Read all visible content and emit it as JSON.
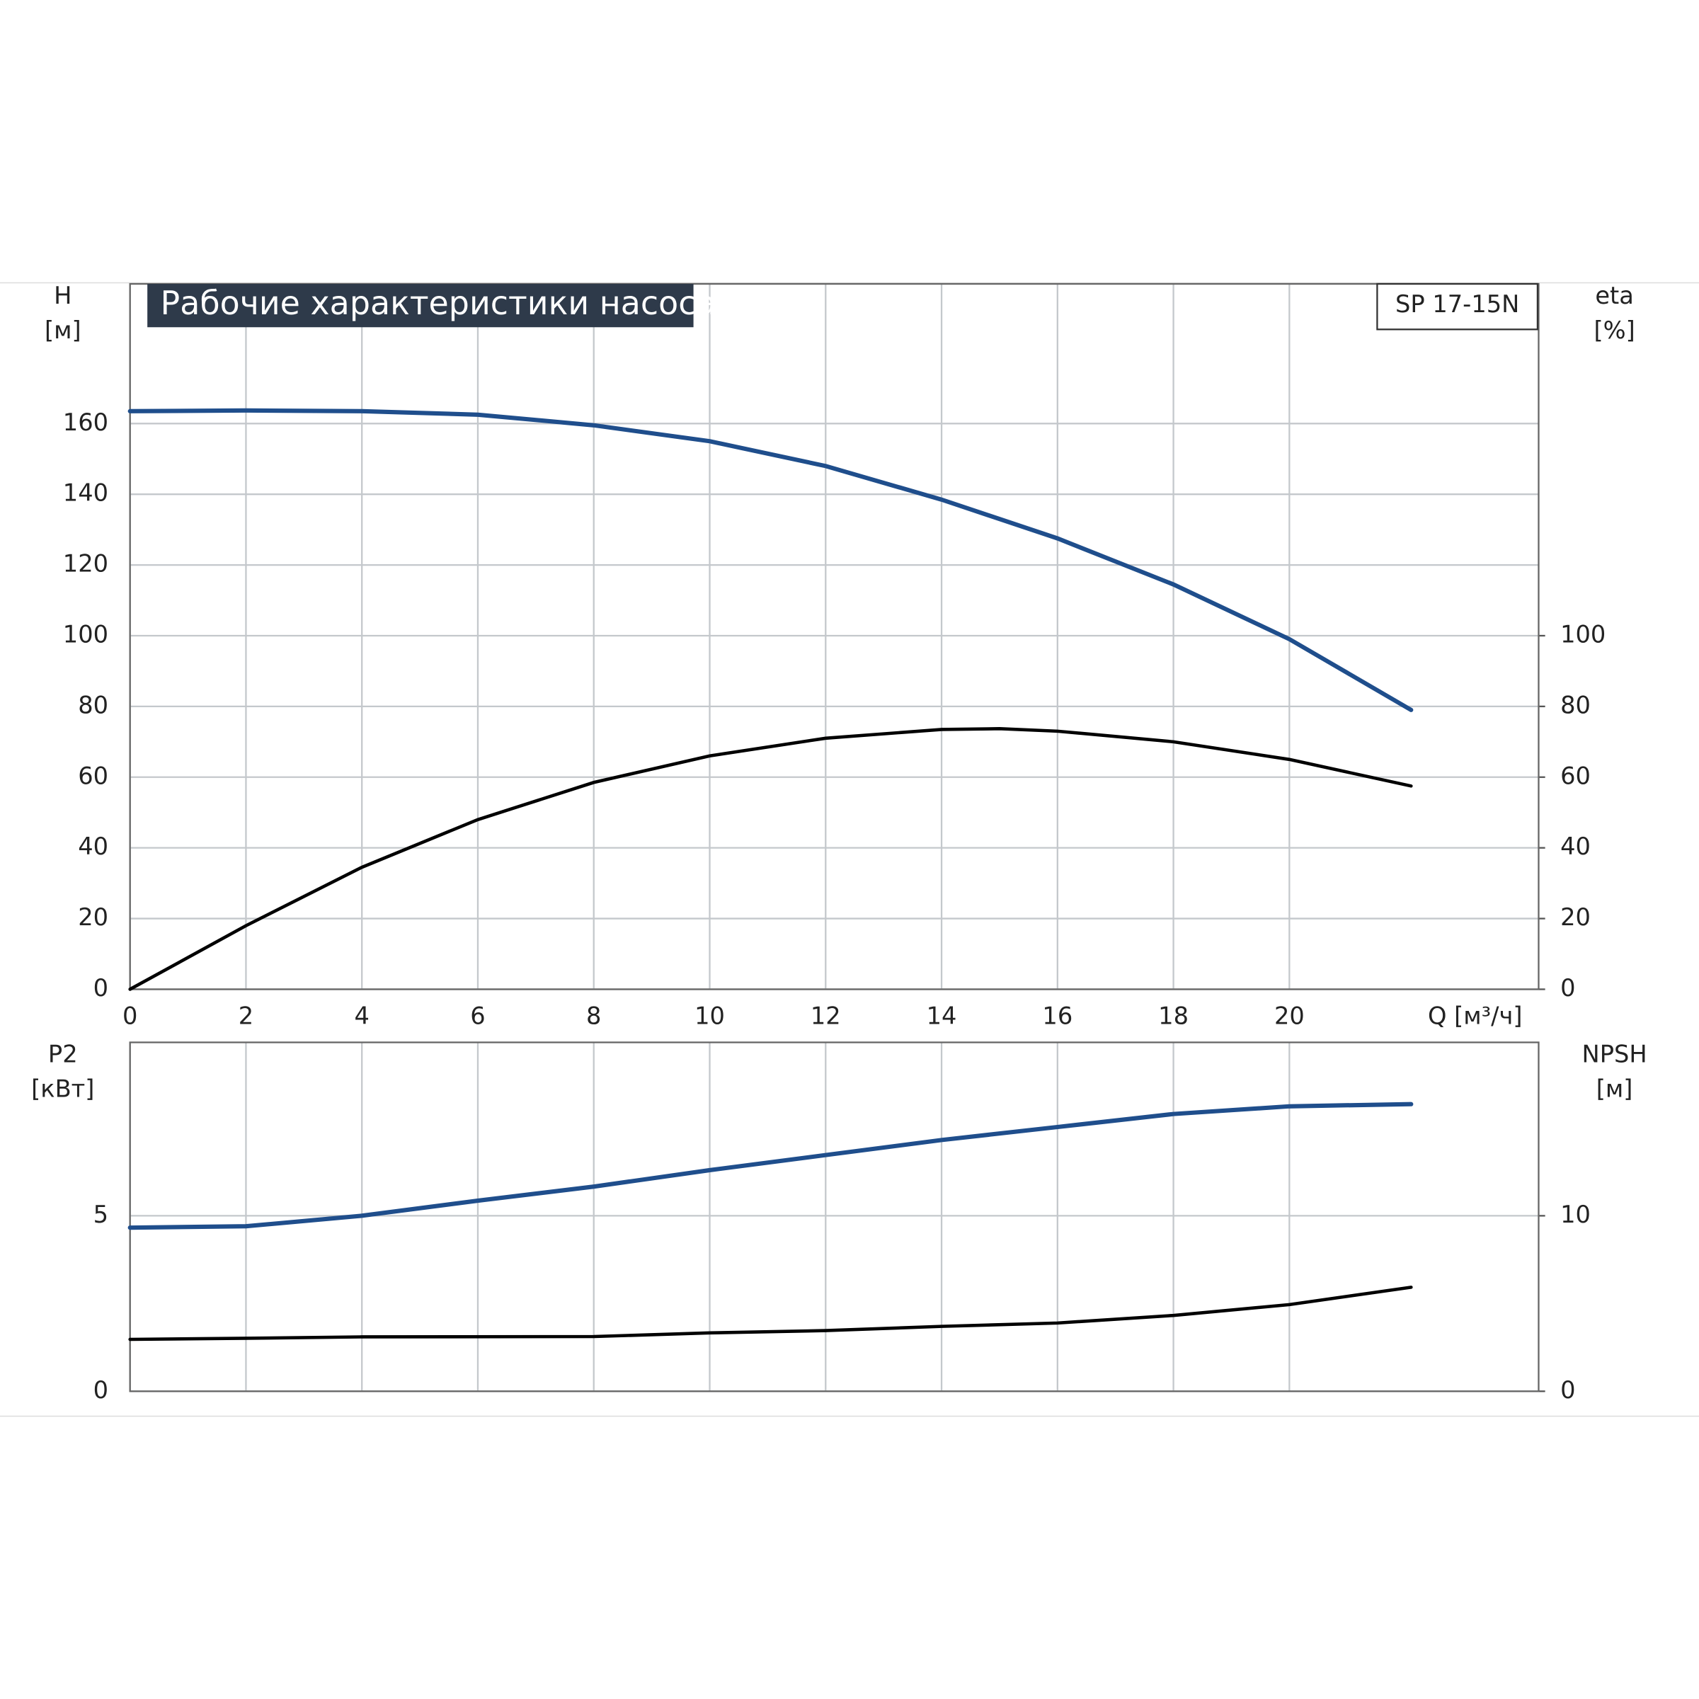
{
  "chart_data": [
    {
      "type": "line",
      "title": "Рабочие характеристики насоса",
      "model": "SP 17-15N",
      "y_label": [
        "H",
        "[м]"
      ],
      "y2_label": [
        "eta",
        "[%]"
      ],
      "x_label": "Q [м³/ч]",
      "xlim": [
        0,
        24.3
      ],
      "xticks": [
        0,
        2,
        4,
        6,
        8,
        10,
        12,
        14,
        16,
        18,
        20
      ],
      "ylim": [
        0,
        199.5
      ],
      "yticks": [
        0,
        20,
        40,
        60,
        80,
        100,
        120,
        140,
        160
      ],
      "y2lim": [
        0,
        199.5
      ],
      "y2ticks": [
        0,
        20,
        40,
        60,
        80,
        100
      ],
      "grid": true,
      "series": [
        {
          "name": "H",
          "color": "#1f4e8c",
          "x": [
            0,
            2,
            4,
            6,
            8,
            10,
            12,
            14,
            16,
            18,
            20,
            22.1
          ],
          "values": [
            163.5,
            163.7,
            163.5,
            162.5,
            159.5,
            155,
            148,
            138.5,
            127.5,
            114.5,
            99,
            79
          ]
        },
        {
          "name": "eta",
          "color": "#000000",
          "axis": "y2",
          "x": [
            0,
            2,
            4,
            6,
            8,
            10,
            12,
            14,
            15,
            16,
            18,
            20,
            22.1
          ],
          "values": [
            0,
            18,
            34.5,
            48,
            58.5,
            66,
            71,
            73.5,
            73.7,
            73,
            70,
            65,
            57.5
          ]
        }
      ]
    },
    {
      "type": "line",
      "y_label": [
        "P2",
        "[кВт]"
      ],
      "y2_label": [
        "NPSH",
        "[м]"
      ],
      "xlim": [
        0,
        24.3
      ],
      "ylim": [
        0,
        9.94
      ],
      "yticks": [
        0,
        5
      ],
      "y2lim": [
        0,
        19.88
      ],
      "y2ticks": [
        0,
        10
      ],
      "grid": true,
      "series": [
        {
          "name": "P2",
          "color": "#1f4e8c",
          "x": [
            0,
            2,
            4,
            6,
            8,
            10,
            12,
            14,
            16,
            18,
            20,
            22.1
          ],
          "values": [
            4.66,
            4.7,
            5.0,
            5.43,
            5.83,
            6.3,
            6.73,
            7.16,
            7.53,
            7.9,
            8.12,
            8.18
          ]
        },
        {
          "name": "NPSH",
          "color": "#000000",
          "axis": "y2",
          "x": [
            0,
            2,
            4,
            8,
            10,
            12,
            14,
            16,
            18,
            20,
            22.1
          ],
          "values": [
            2.96,
            3.02,
            3.1,
            3.12,
            3.33,
            3.46,
            3.7,
            3.89,
            4.32,
            4.94,
            5.93
          ]
        }
      ]
    }
  ]
}
